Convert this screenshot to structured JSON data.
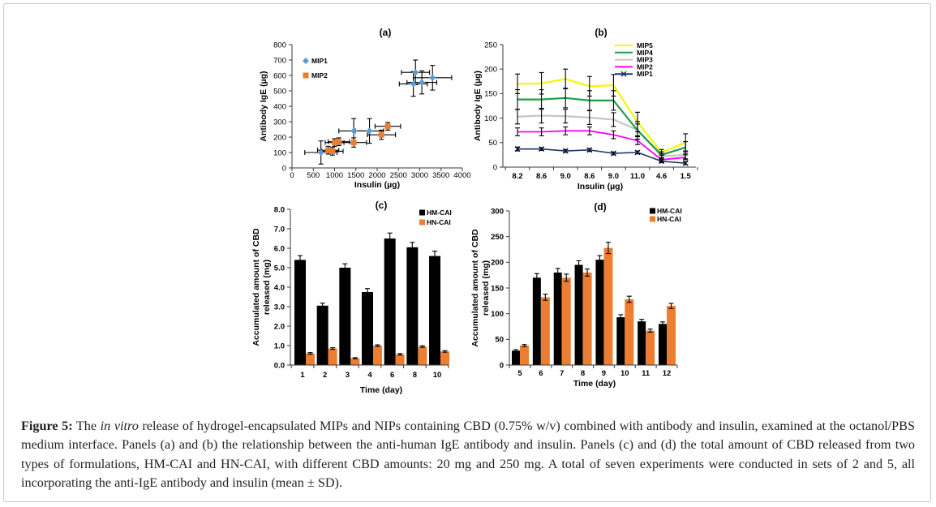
{
  "caption": {
    "label": "Figure 5:",
    "text_before_italic": "The ",
    "italic_text": "in vitro",
    "text_after_italic": " release of hydrogel-encapsulated MIPs and NIPs containing CBD (0.75% w/v) combined with antibody and insulin, examined at the octanol/PBS medium interface. Panels (a) and (b) the relationship between the anti-human IgE antibody and insulin. Panels (c) and (d) the total amount of CBD released from two types of formulations, HM-CAI and HN-CAI, with different CBD amounts: 20 mg and 250 mg. A total of seven experiments were conducted in sets of 2 and 5, all incorporating the anti-IgE antibody and insulin (mean ± SD)."
  },
  "chart_data": [
    {
      "type": "scatter",
      "title": "(a)",
      "xlabel": "Insulin (µg)",
      "ylabel": "Antibody IgE (µg)",
      "xlim": [
        0,
        4000
      ],
      "ylim": [
        0,
        800
      ],
      "xticks": [
        "0",
        "500",
        "1000",
        "1500",
        "2000",
        "2500",
        "3000",
        "3500",
        "4000"
      ],
      "yticks": [
        "0",
        "100",
        "200",
        "300",
        "400",
        "500",
        "600",
        "700",
        "800"
      ],
      "legend": "top-left",
      "series": [
        {
          "name": "MIP1",
          "color": "#5b9bd5",
          "marker": "diamond",
          "points": [
            {
              "x": 680,
              "y": 100,
              "xerr": 380,
              "yerr": 75
            },
            {
              "x": 1450,
              "y": 240,
              "xerr": 350,
              "yerr": 80
            },
            {
              "x": 1820,
              "y": 240,
              "xerr": 330,
              "yerr": 80
            },
            {
              "x": 2850,
              "y": 545,
              "xerr": 330,
              "yerr": 80
            },
            {
              "x": 3050,
              "y": 555,
              "xerr": 350,
              "yerr": 75
            },
            {
              "x": 2900,
              "y": 620,
              "xerr": 330,
              "yerr": 80
            },
            {
              "x": 3300,
              "y": 585,
              "xerr": 450,
              "yerr": 80
            }
          ]
        },
        {
          "name": "MIP2",
          "color": "#ed7d31",
          "marker": "square",
          "points": [
            {
              "x": 850,
              "y": 115,
              "xerr": 250,
              "yerr": 25
            },
            {
              "x": 950,
              "y": 108,
              "xerr": 250,
              "yerr": 25
            },
            {
              "x": 1000,
              "y": 165,
              "xerr": 220,
              "yerr": 25
            },
            {
              "x": 1100,
              "y": 170,
              "xerr": 250,
              "yerr": 25
            },
            {
              "x": 1450,
              "y": 165,
              "xerr": 300,
              "yerr": 30
            },
            {
              "x": 2100,
              "y": 215,
              "xerr": 330,
              "yerr": 30
            },
            {
              "x": 2250,
              "y": 270,
              "xerr": 300,
              "yerr": 25
            }
          ]
        }
      ]
    },
    {
      "type": "line",
      "title": "(b)",
      "xlabel": "Insulin (µg)",
      "ylabel": "Antibody IgE (µg)",
      "categories": [
        "8.2",
        "8.6",
        "9.0",
        "8.6",
        "9.0",
        "11.0",
        "4.6",
        "1.5"
      ],
      "ylim": [
        0,
        250
      ],
      "yticks": [
        "0",
        "50",
        "100",
        "150",
        "200",
        "250"
      ],
      "legend": "top-right",
      "series": [
        {
          "name": "MIP5",
          "color": "#f7f700",
          "marker": "none",
          "values": [
            170,
            171,
            180,
            165,
            167,
            92,
            30,
            50
          ],
          "errors": [
            20,
            22,
            20,
            20,
            22,
            20,
            6,
            18
          ]
        },
        {
          "name": "MIP4",
          "color": "#1f9e4a",
          "marker": "none",
          "values": [
            138,
            138,
            141,
            136,
            136,
            75,
            25,
            40
          ],
          "errors": [
            20,
            20,
            20,
            20,
            20,
            18,
            6,
            12
          ]
        },
        {
          "name": "MIP3",
          "color": "#c4c4c4",
          "marker": "none",
          "values": [
            103,
            105,
            104,
            101,
            97,
            76,
            22,
            25
          ],
          "errors": [
            15,
            15,
            14,
            14,
            14,
            12,
            5,
            8
          ]
        },
        {
          "name": "MIP2",
          "color": "#ff00ff",
          "marker": "none",
          "values": [
            72,
            72,
            74,
            74,
            66,
            54,
            15,
            20
          ],
          "errors": [
            8,
            8,
            8,
            8,
            8,
            8,
            4,
            5
          ]
        },
        {
          "name": "MIP1",
          "color": "#1f3864",
          "marker": "x",
          "values": [
            37,
            37,
            33,
            35,
            28,
            30,
            12,
            8
          ],
          "errors": [
            4,
            3,
            3,
            3,
            3,
            3,
            3,
            3
          ]
        }
      ]
    },
    {
      "type": "bar",
      "title": "(c)",
      "xlabel": "Time (day)",
      "ylabel": [
        "Accumulated amount of  CBD",
        "released (mg)"
      ],
      "categories": [
        "1",
        "2",
        "3",
        "4",
        "6",
        "8",
        "10"
      ],
      "ylim": [
        0,
        8
      ],
      "yticks": [
        "0.0",
        "1.0",
        "2.0",
        "3.0",
        "4.0",
        "5.0",
        "6.0",
        "7.0",
        "8.0"
      ],
      "legend": "top-right",
      "series": [
        {
          "name": "HM-CAI",
          "color": "#000000",
          "values": [
            5.4,
            3.05,
            5.0,
            3.75,
            6.5,
            6.05,
            5.6
          ],
          "errors": [
            0.22,
            0.13,
            0.2,
            0.18,
            0.28,
            0.25,
            0.25
          ]
        },
        {
          "name": "HN-CAI",
          "color": "#ed7d31",
          "values": [
            0.6,
            0.85,
            0.35,
            1.0,
            0.55,
            0.95,
            0.7
          ],
          "errors": [
            0.04,
            0.04,
            0.03,
            0.04,
            0.04,
            0.04,
            0.04
          ]
        }
      ]
    },
    {
      "type": "bar",
      "title": "(d)",
      "xlabel": "Time (day)",
      "ylabel": [
        "Accumulated amount of CBD",
        "released (mg)"
      ],
      "categories": [
        "5",
        "6",
        "7",
        "8",
        "9",
        "10",
        "11",
        "12"
      ],
      "ylim": [
        0,
        300
      ],
      "yticks": [
        "0",
        "50",
        "100",
        "150",
        "200",
        "250",
        "300"
      ],
      "legend": "top-right",
      "series": [
        {
          "name": "HM-CAI",
          "color": "#000000",
          "values": [
            28,
            170,
            180,
            195,
            205,
            93,
            85,
            80
          ],
          "errors": [
            2,
            8,
            8,
            8,
            8,
            5,
            4,
            4
          ]
        },
        {
          "name": "HN-CAI",
          "color": "#ed7d31",
          "values": [
            38,
            132,
            170,
            180,
            228,
            128,
            67,
            115
          ],
          "errors": [
            2,
            6,
            7,
            7,
            11,
            6,
            3,
            5
          ]
        }
      ]
    }
  ]
}
